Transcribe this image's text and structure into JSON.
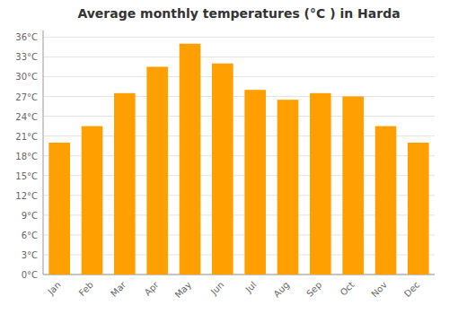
{
  "chart_data": {
    "type": "bar",
    "title": "Average monthly temperatures (°C ) in Harda",
    "categories": [
      "Jan",
      "Feb",
      "Mar",
      "Apr",
      "May",
      "Jun",
      "Jul",
      "Aug",
      "Sep",
      "Oct",
      "Nov",
      "Dec"
    ],
    "values": [
      20.0,
      22.5,
      27.5,
      31.5,
      35.0,
      32.0,
      28.0,
      26.5,
      27.5,
      27.0,
      22.5,
      20.0
    ],
    "color": "#FFA000",
    "ylim": [
      0,
      37
    ],
    "yticks": [
      {
        "value": 0,
        "label": "0°C"
      },
      {
        "value": 3,
        "label": "3°C"
      },
      {
        "value": 6,
        "label": "6°C"
      },
      {
        "value": 9,
        "label": "9°C"
      },
      {
        "value": 12,
        "label": "12°C"
      },
      {
        "value": 15,
        "label": "15°C"
      },
      {
        "value": 18,
        "label": "18°C"
      },
      {
        "value": 21,
        "label": "21°C"
      },
      {
        "value": 24,
        "label": "24°C"
      },
      {
        "value": 27,
        "label": "27°C"
      },
      {
        "value": 30,
        "label": "30°C"
      },
      {
        "value": 33,
        "label": "33°C"
      },
      {
        "value": 36,
        "label": "36°C"
      }
    ],
    "grid": true
  }
}
